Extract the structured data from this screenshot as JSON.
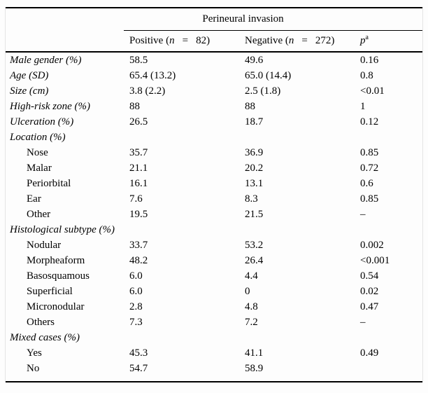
{
  "page": {
    "background_color": "#fdfdfd",
    "rule_color": "#000000",
    "frame_border_color": "#e4e4e4"
  },
  "table": {
    "spanner_title": "Perineural invasion",
    "header": {
      "positive": {
        "prefix": "Positive (",
        "n": "n",
        "eq": "=",
        "count": "82)"
      },
      "negative": {
        "prefix": "Negative (",
        "n": "n",
        "eq": "=",
        "count": "272)"
      },
      "p": {
        "symbol": "p",
        "superscript": "a"
      }
    },
    "rows": [
      {
        "type": "data",
        "label": "Male gender (%)",
        "positive": "58.5",
        "negative": "49.6",
        "p": "0.16"
      },
      {
        "type": "data",
        "label": "Age (SD)",
        "positive": "65.4 (13.2)",
        "negative": "65.0 (14.4)",
        "p": "0.8"
      },
      {
        "type": "data",
        "label": "Size (cm)",
        "positive": "3.8 (2.2)",
        "negative": "2.5 (1.8)",
        "p": "<0.01"
      },
      {
        "type": "data",
        "label": "High-risk zone (%)",
        "positive": "88",
        "negative": "88",
        "p": "1"
      },
      {
        "type": "data",
        "label": "Ulceration (%)",
        "positive": "26.5",
        "negative": "18.7",
        "p": "0.12"
      },
      {
        "type": "section",
        "label": "Location (%)"
      },
      {
        "type": "sub",
        "label": "Nose",
        "positive": "35.7",
        "negative": "36.9",
        "p": "0.85"
      },
      {
        "type": "sub",
        "label": "Malar",
        "positive": "21.1",
        "negative": "20.2",
        "p": "0.72"
      },
      {
        "type": "sub",
        "label": "Periorbital",
        "positive": "16.1",
        "negative": "13.1",
        "p": "0.6"
      },
      {
        "type": "sub",
        "label": "Ear",
        "positive": "7.6",
        "negative": "8.3",
        "p": "0.85"
      },
      {
        "type": "sub",
        "label": "Other",
        "positive": "19.5",
        "negative": "21.5",
        "p": "–"
      },
      {
        "type": "section",
        "label": "Histological subtype (%)"
      },
      {
        "type": "sub",
        "label": "Nodular",
        "positive": "33.7",
        "negative": "53.2",
        "p": "0.002"
      },
      {
        "type": "sub",
        "label": "Morpheaform",
        "positive": "48.2",
        "negative": "26.4",
        "p": "<0.001"
      },
      {
        "type": "sub",
        "label": "Basosquamous",
        "positive": "6.0",
        "negative": "4.4",
        "p": "0.54"
      },
      {
        "type": "sub",
        "label": "Superficial",
        "positive": "6.0",
        "negative": "0",
        "p": "0.02"
      },
      {
        "type": "sub",
        "label": "Micronodular",
        "positive": "2.8",
        "negative": "4.8",
        "p": "0.47"
      },
      {
        "type": "sub",
        "label": "Others",
        "positive": "7.3",
        "negative": "7.2",
        "p": "–"
      },
      {
        "type": "section",
        "label": "Mixed cases (%)"
      },
      {
        "type": "sub",
        "label": "Yes",
        "positive": "45.3",
        "negative": "41.1",
        "p": "0.49"
      },
      {
        "type": "sub",
        "label": "No",
        "positive": "54.7",
        "negative": "58.9",
        "p": ""
      }
    ]
  }
}
